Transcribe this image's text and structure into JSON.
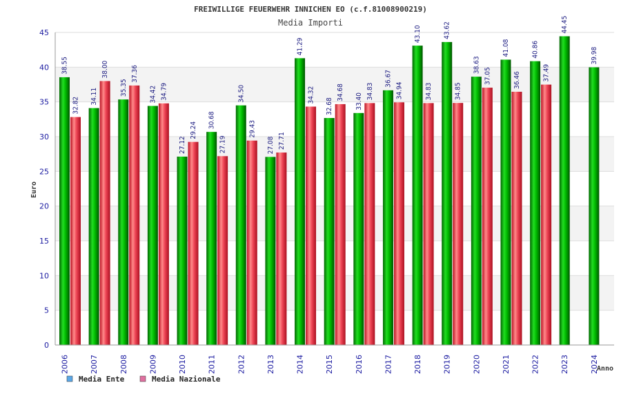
{
  "chart_data": {
    "type": "bar",
    "title": "FREIWILLIGE FEUERWEHR INNICHEN EO (c.f.81008900219)",
    "subtitle": "Media Importi",
    "ylabel": "Euro",
    "xlabel": "Anno",
    "ylim": [
      0,
      45
    ],
    "yticks": [
      0,
      5,
      10,
      15,
      20,
      25,
      30,
      35,
      40,
      45
    ],
    "grid": true,
    "legend_position": "bottom-left",
    "categories": [
      "2006",
      "2007",
      "2008",
      "2009",
      "2010",
      "2011",
      "2012",
      "2013",
      "2014",
      "2015",
      "2016",
      "2017",
      "2018",
      "2019",
      "2020",
      "2021",
      "2022",
      "2023",
      "2024"
    ],
    "series": [
      {
        "name": "Media Ente",
        "color": "#00aa00",
        "legend_color": "#5ba8e8",
        "values": [
          38.55,
          34.11,
          35.35,
          34.42,
          27.12,
          30.68,
          34.5,
          27.08,
          41.29,
          32.68,
          33.4,
          36.67,
          43.1,
          43.62,
          38.63,
          41.08,
          40.86,
          44.45,
          39.98
        ],
        "labels": [
          "38.55",
          "34.11",
          "35.35",
          "34.42",
          "27.12",
          "30.68",
          "34.50",
          "27.08",
          "41.29",
          "32.68",
          "33.40",
          "36.67",
          "43.10",
          "43.62",
          "38.63",
          "41.08",
          "40.86",
          "44.45",
          "39.98"
        ]
      },
      {
        "name": "Media Nazionale",
        "color": "#dd2233",
        "legend_color": "#e070a0",
        "values": [
          32.82,
          38.0,
          37.36,
          34.79,
          29.24,
          27.19,
          29.43,
          27.71,
          34.32,
          34.68,
          34.83,
          34.94,
          34.83,
          34.85,
          37.05,
          36.46,
          37.49,
          null,
          null
        ],
        "labels": [
          "32.82",
          "38.00",
          "37.36",
          "34.79",
          "29.24",
          "27.19",
          "29.43",
          "27.71",
          "34.32",
          "34.68",
          "34.83",
          "34.94",
          "34.83",
          "34.85",
          "37.05",
          "36.46",
          "37.49",
          null,
          null
        ]
      }
    ]
  }
}
